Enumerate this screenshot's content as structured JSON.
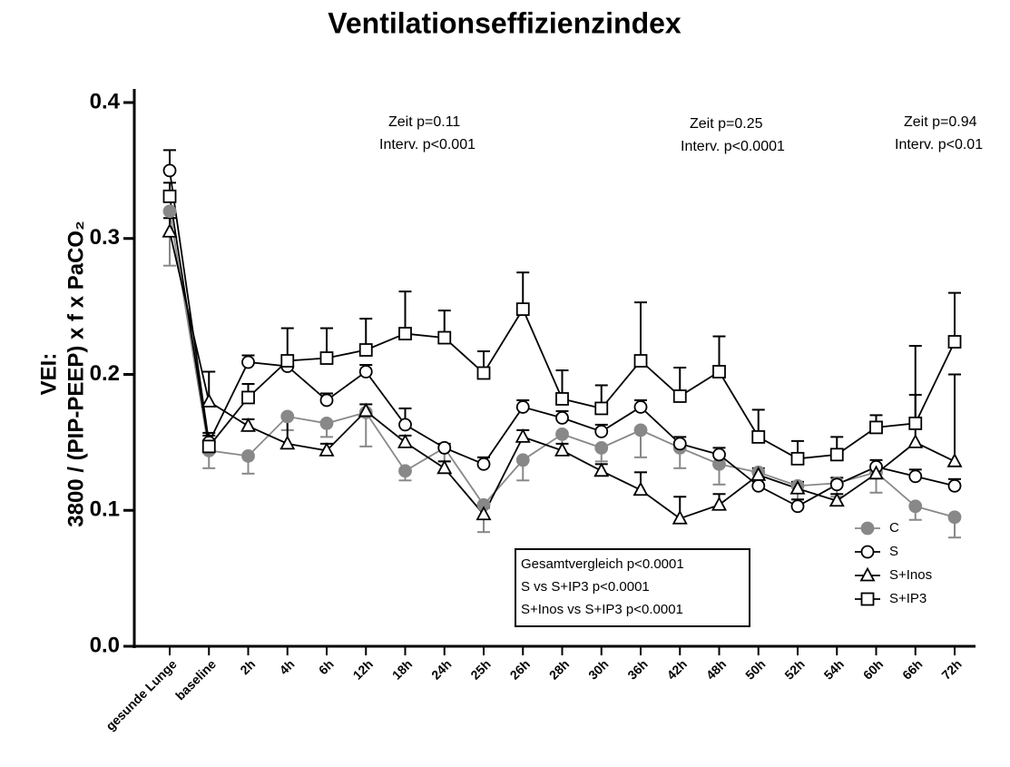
{
  "chart_data": {
    "type": "line",
    "title": "Ventilationseffizienzindex",
    "ylabel": [
      "VEI:",
      "3800 / (PIP-PEEP) x f x PaCO₂"
    ],
    "categories": [
      "gesunde Lunge",
      "baseline",
      "2h",
      "4h",
      "6h",
      "12h",
      "18h",
      "24h",
      "25h",
      "26h",
      "28h",
      "30h",
      "36h",
      "42h",
      "48h",
      "50h",
      "52h",
      "54h",
      "60h",
      "66h",
      "72h"
    ],
    "ylim": [
      0,
      0.41
    ],
    "yticks": [
      {
        "value": 0,
        "label": "0.0"
      },
      0.1,
      0.2,
      0.3,
      0.4
    ],
    "legend": "lower right",
    "annotations": [
      [
        "Zeit p=0.11",
        "Interv. p<0.001"
      ],
      [
        "Zeit p=0.25",
        "Interv. p<0.0001"
      ],
      [
        "Zeit p=0.94",
        "Interv. p<0.01"
      ]
    ],
    "stats_box": [
      "Gesamtvergleich p<0.0001",
      "S vs S+IP3 p<0.0001",
      "S+Inos vs S+IP3 p<0.0001"
    ],
    "series": [
      {
        "name": "C",
        "color": "#888888",
        "marker": "circle",
        "filled": true,
        "error_direction": "down",
        "values": [
          0.32,
          0.144,
          0.14,
          0.169,
          0.164,
          0.172,
          0.129,
          0.146,
          0.104,
          0.137,
          0.156,
          0.146,
          0.159,
          0.146,
          0.134,
          0.128,
          0.118,
          0.12,
          0.128,
          0.103,
          0.095
        ],
        "errors": [
          0.04,
          0.013,
          0.013,
          0.01,
          0.01,
          0.025,
          0.007,
          0.01,
          0.02,
          0.015,
          0.015,
          0.01,
          0.02,
          0.015,
          0.015,
          0.01,
          0.01,
          0.01,
          0.015,
          0.01,
          0.015
        ]
      },
      {
        "name": "S",
        "color": "#000000",
        "marker": "circle",
        "filled": false,
        "error_direction": "up",
        "values": [
          0.35,
          0.15,
          0.209,
          0.206,
          0.181,
          0.202,
          0.163,
          0.146,
          0.134,
          0.176,
          0.168,
          0.158,
          0.176,
          0.149,
          0.141,
          0.118,
          0.103,
          0.119,
          0.132,
          0.125,
          0.118
        ],
        "errors": [
          0.015,
          0.005,
          0.005,
          0.005,
          0.005,
          0.005,
          0.012,
          0.003,
          0.005,
          0.005,
          0.005,
          0.005,
          0.005,
          0.005,
          0.005,
          0.005,
          0.005,
          0.005,
          0.005,
          0.005,
          0.005
        ]
      },
      {
        "name": "S+Inos",
        "color": "#000000",
        "marker": "triangle",
        "filled": false,
        "error_direction": "up",
        "values": [
          0.305,
          0.18,
          0.162,
          0.149,
          0.144,
          0.173,
          0.15,
          0.131,
          0.097,
          0.154,
          0.144,
          0.129,
          0.115,
          0.094,
          0.104,
          0.126,
          0.116,
          0.107,
          0.127,
          0.15,
          0.136
        ],
        "errors": [
          0.01,
          0.022,
          0.005,
          0.02,
          0.005,
          0.005,
          0.005,
          0.005,
          0.005,
          0.005,
          0.005,
          0.005,
          0.013,
          0.016,
          0.008,
          0.005,
          0.005,
          0.005,
          0.005,
          0.035,
          0.064
        ]
      },
      {
        "name": "S+IP3",
        "color": "#000000",
        "marker": "square",
        "filled": false,
        "error_direction": "up",
        "values": [
          0.331,
          0.147,
          0.183,
          0.21,
          0.212,
          0.218,
          0.23,
          0.227,
          0.201,
          0.248,
          0.182,
          0.175,
          0.21,
          0.184,
          0.202,
          0.154,
          0.138,
          0.141,
          0.161,
          0.164,
          0.224
        ],
        "errors": [
          0.01,
          0.01,
          0.01,
          0.024,
          0.022,
          0.023,
          0.031,
          0.02,
          0.016,
          0.027,
          0.021,
          0.017,
          0.043,
          0.021,
          0.026,
          0.02,
          0.013,
          0.013,
          0.009,
          0.057,
          0.036
        ]
      }
    ]
  }
}
